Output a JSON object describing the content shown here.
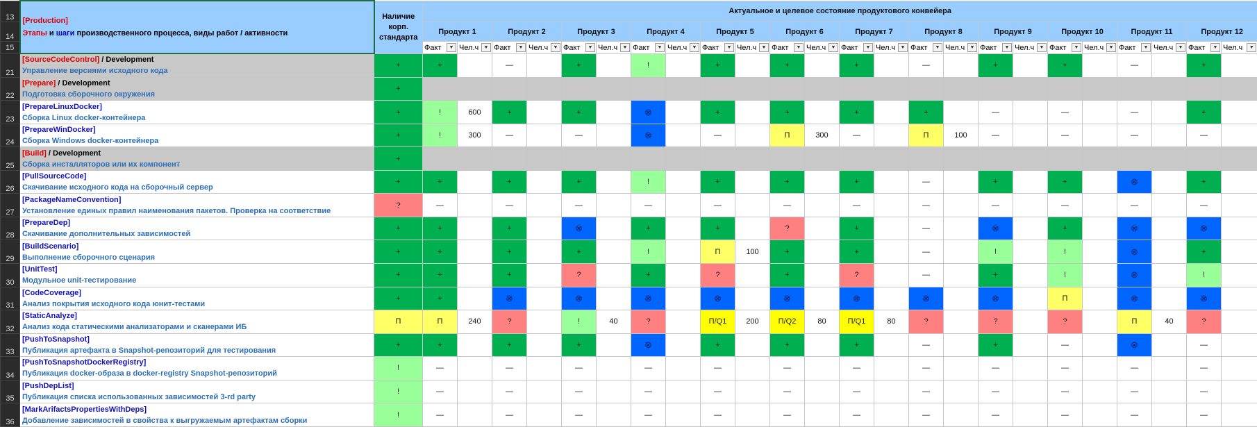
{
  "header": {
    "row_numbers": [
      "13",
      "14",
      "15"
    ],
    "title_production": "[Production]",
    "title_stages": "Этапы",
    "title_and": " и ",
    "title_steps": "шаги",
    "title_rest": " производственного процесса, виды работ / активности",
    "standard_header": "Наличие корп. стандарта",
    "conveyor_title": "Актуальное и целевое состояние продуктового конвейера",
    "fact_label": "Факт",
    "hours_label": "Чел.ч",
    "dropdown_glyph": "▼"
  },
  "products": [
    "Продукт 1",
    "Продукт 2",
    "Продукт 3",
    "Продукт 4",
    "Продукт 5",
    "Продукт 6",
    "Продукт 7",
    "Продукт 8",
    "Продукт 9",
    "Продукт 10",
    "Продукт 11",
    "Продукт 12"
  ],
  "rows": [
    {
      "num": "21",
      "code": "[SourceCodeControl]",
      "dev": " / Development",
      "desc": "Управление версиями исходного кода",
      "section": true,
      "standard": "+",
      "cells": [
        [
          "+",
          ""
        ],
        [
          "—",
          ""
        ],
        [
          "+",
          ""
        ],
        [
          "!",
          ""
        ],
        [
          "+",
          ""
        ],
        [
          "+",
          ""
        ],
        [
          "+",
          ""
        ],
        [
          "—",
          ""
        ],
        [
          "+",
          ""
        ],
        [
          "+",
          ""
        ],
        [
          "—",
          ""
        ],
        [
          "+",
          ""
        ]
      ]
    },
    {
      "num": "22",
      "code": "[Prepare]",
      "dev": " / Development",
      "desc": "Подготовка сборочного окружения",
      "section": true,
      "gray": true,
      "standard": "+",
      "cells": []
    },
    {
      "num": "23",
      "code": "[PrepareLinuxDocker]",
      "dev": "",
      "desc": "Сборка Linux docker-контейнера",
      "standard": "+",
      "cells": [
        [
          "!",
          "600"
        ],
        [
          "+",
          ""
        ],
        [
          "+",
          ""
        ],
        [
          "⊗",
          ""
        ],
        [
          "+",
          ""
        ],
        [
          "+",
          ""
        ],
        [
          "+",
          ""
        ],
        [
          "+",
          ""
        ],
        [
          "—",
          ""
        ],
        [
          "—",
          ""
        ],
        [
          "—",
          ""
        ],
        [
          "+",
          ""
        ]
      ]
    },
    {
      "num": "24",
      "code": "[PrepareWinDocker]",
      "dev": "",
      "desc": "Сборка Windows docker-контейнера",
      "standard": "+",
      "cells": [
        [
          "!",
          "300"
        ],
        [
          "—",
          ""
        ],
        [
          "—",
          ""
        ],
        [
          "⊗",
          ""
        ],
        [
          "—",
          ""
        ],
        [
          "П",
          "300"
        ],
        [
          "—",
          ""
        ],
        [
          "П",
          "100"
        ],
        [
          "—",
          ""
        ],
        [
          "—",
          ""
        ],
        [
          "—",
          ""
        ],
        [
          "—",
          ""
        ]
      ]
    },
    {
      "num": "25",
      "code": "[Build]",
      "dev": " / Development",
      "desc": "Сборка инсталляторов или их компонент",
      "section": true,
      "gray": true,
      "standard": "+",
      "cells": []
    },
    {
      "num": "26",
      "code": "[PullSourceCode]",
      "dev": "",
      "desc": "Скачивание исходного кода на сборочный сервер",
      "standard": "+",
      "cells": [
        [
          "+",
          ""
        ],
        [
          "+",
          ""
        ],
        [
          "+",
          ""
        ],
        [
          "!",
          ""
        ],
        [
          "+",
          ""
        ],
        [
          "+",
          ""
        ],
        [
          "+",
          ""
        ],
        [
          "—",
          ""
        ],
        [
          "+",
          ""
        ],
        [
          "+",
          ""
        ],
        [
          "⊗",
          ""
        ],
        [
          "+",
          ""
        ]
      ]
    },
    {
      "num": "27",
      "code": "[PackageNameConvention]",
      "dev": "",
      "desc": "Установление единых правил наименования пакетов. Проверка на соответствие",
      "standard": "?",
      "cells": [
        [
          "—",
          ""
        ],
        [
          "—",
          ""
        ],
        [
          "—",
          ""
        ],
        [
          "—",
          ""
        ],
        [
          "—",
          ""
        ],
        [
          "—",
          ""
        ],
        [
          "—",
          ""
        ],
        [
          "—",
          ""
        ],
        [
          "—",
          ""
        ],
        [
          "—",
          ""
        ],
        [
          "—",
          ""
        ],
        [
          "—",
          ""
        ]
      ]
    },
    {
      "num": "28",
      "code": "[PrepareDep]",
      "dev": "",
      "desc": "Скачивание дополнительных зависимостей",
      "standard": "+",
      "cells": [
        [
          "+",
          ""
        ],
        [
          "+",
          ""
        ],
        [
          "⊗",
          ""
        ],
        [
          "+",
          ""
        ],
        [
          "+",
          ""
        ],
        [
          "?",
          ""
        ],
        [
          "+",
          ""
        ],
        [
          "—",
          ""
        ],
        [
          "⊗",
          ""
        ],
        [
          "+",
          ""
        ],
        [
          "⊗",
          ""
        ],
        [
          "⊗",
          ""
        ]
      ]
    },
    {
      "num": "29",
      "code": "[BuildScenario]",
      "dev": "",
      "desc": "Выполнение сборочного сценария",
      "standard": "+",
      "cells": [
        [
          "+",
          ""
        ],
        [
          "+",
          ""
        ],
        [
          "+",
          ""
        ],
        [
          "!",
          ""
        ],
        [
          "П",
          "100"
        ],
        [
          "+",
          ""
        ],
        [
          "+",
          ""
        ],
        [
          "—",
          ""
        ],
        [
          "!",
          ""
        ],
        [
          "!",
          ""
        ],
        [
          "⊗",
          ""
        ],
        [
          "+",
          ""
        ]
      ]
    },
    {
      "num": "30",
      "code": "[UnitTest]",
      "dev": "",
      "desc": "Модульное unit-тестирование",
      "standard": "+",
      "cells": [
        [
          "+",
          ""
        ],
        [
          "+",
          ""
        ],
        [
          "?",
          ""
        ],
        [
          "+",
          ""
        ],
        [
          "?",
          ""
        ],
        [
          "+",
          ""
        ],
        [
          "?",
          ""
        ],
        [
          "—",
          ""
        ],
        [
          "+",
          ""
        ],
        [
          "!",
          ""
        ],
        [
          "⊗",
          ""
        ],
        [
          "!",
          ""
        ]
      ]
    },
    {
      "num": "31",
      "code": "[CodeCoverage]",
      "dev": "",
      "desc": "Анализ покрытия исходного кода юнит-тестами",
      "standard": "+",
      "cells": [
        [
          "+",
          ""
        ],
        [
          "⊗",
          ""
        ],
        [
          "⊗",
          ""
        ],
        [
          "⊗",
          ""
        ],
        [
          "⊗",
          ""
        ],
        [
          "⊗",
          ""
        ],
        [
          "⊗",
          ""
        ],
        [
          "⊗",
          ""
        ],
        [
          "⊗",
          ""
        ],
        [
          "П",
          ""
        ],
        [
          "⊗",
          ""
        ],
        [
          "⊗",
          ""
        ]
      ]
    },
    {
      "num": "32",
      "code": "[StaticAnalyze]",
      "dev": "",
      "desc": "Анализ кода статическими анализаторами и сканерами ИБ",
      "standard": "П",
      "cells": [
        [
          "П",
          "240"
        ],
        [
          "?",
          ""
        ],
        [
          "!",
          "40"
        ],
        [
          "?",
          ""
        ],
        [
          "П/Q1",
          "200"
        ],
        [
          "П/Q2",
          "80"
        ],
        [
          "П/Q1",
          "80"
        ],
        [
          "?",
          ""
        ],
        [
          "?",
          ""
        ],
        [
          "?",
          ""
        ],
        [
          "П",
          "40"
        ],
        [
          "?",
          ""
        ]
      ]
    },
    {
      "num": "33",
      "code": "[PushToSnapshot]",
      "dev": "",
      "desc": "Публикация артефакта в Snapshot-репозиторий для тестирования",
      "standard": "+",
      "cells": [
        [
          "+",
          ""
        ],
        [
          "+",
          ""
        ],
        [
          "+",
          ""
        ],
        [
          "⊗",
          ""
        ],
        [
          "+",
          ""
        ],
        [
          "+",
          ""
        ],
        [
          "+",
          ""
        ],
        [
          "—",
          ""
        ],
        [
          "+",
          ""
        ],
        [
          "—",
          ""
        ],
        [
          "⊗",
          ""
        ],
        [
          "—",
          ""
        ]
      ]
    },
    {
      "num": "34",
      "code": "[PushToSnapshotDockerRegistry]",
      "dev": "",
      "desc": "Публикация docker-образа в docker-registry Snapshot-репозиторий",
      "standard": "!",
      "cells": [
        [
          "—",
          ""
        ],
        [
          "—",
          ""
        ],
        [
          "—",
          ""
        ],
        [
          "—",
          ""
        ],
        [
          "—",
          ""
        ],
        [
          "—",
          ""
        ],
        [
          "—",
          ""
        ],
        [
          "—",
          ""
        ],
        [
          "—",
          ""
        ],
        [
          "—",
          ""
        ],
        [
          "—",
          ""
        ],
        [
          "—",
          ""
        ]
      ]
    },
    {
      "num": "35",
      "code": "[PushDepList]",
      "dev": "",
      "desc": "Публикация списка использованных зависимостей 3-rd party",
      "standard": "!",
      "cells": [
        [
          "—",
          ""
        ],
        [
          "—",
          ""
        ],
        [
          "—",
          ""
        ],
        [
          "—",
          ""
        ],
        [
          "—",
          ""
        ],
        [
          "—",
          ""
        ],
        [
          "—",
          ""
        ],
        [
          "—",
          ""
        ],
        [
          "—",
          ""
        ],
        [
          "—",
          ""
        ],
        [
          "—",
          ""
        ],
        [
          "—",
          ""
        ]
      ]
    },
    {
      "num": "36",
      "code": "[MarkArifactsPropertiesWithDeps]",
      "dev": "",
      "desc": "Добавление зависимостей в свойства к выгружаемым артефактам сборки",
      "standard": "!",
      "cells": [
        [
          "—",
          ""
        ],
        [
          "—",
          ""
        ],
        [
          "—",
          ""
        ],
        [
          "—",
          ""
        ],
        [
          "—",
          ""
        ],
        [
          "—",
          ""
        ],
        [
          "—",
          ""
        ],
        [
          "—",
          ""
        ],
        [
          "—",
          ""
        ],
        [
          "—",
          ""
        ],
        [
          "—",
          ""
        ],
        [
          "—",
          ""
        ]
      ]
    }
  ],
  "colors": {
    "plus": "#00b050",
    "exclamation": "#99ff99",
    "blocked": "#0066ff",
    "question": "#ff8080",
    "planned": "#ffff66",
    "planned_quarter": "#ffff00",
    "header_blue": "#99ccff",
    "section_gray": "#c8c8c8"
  }
}
